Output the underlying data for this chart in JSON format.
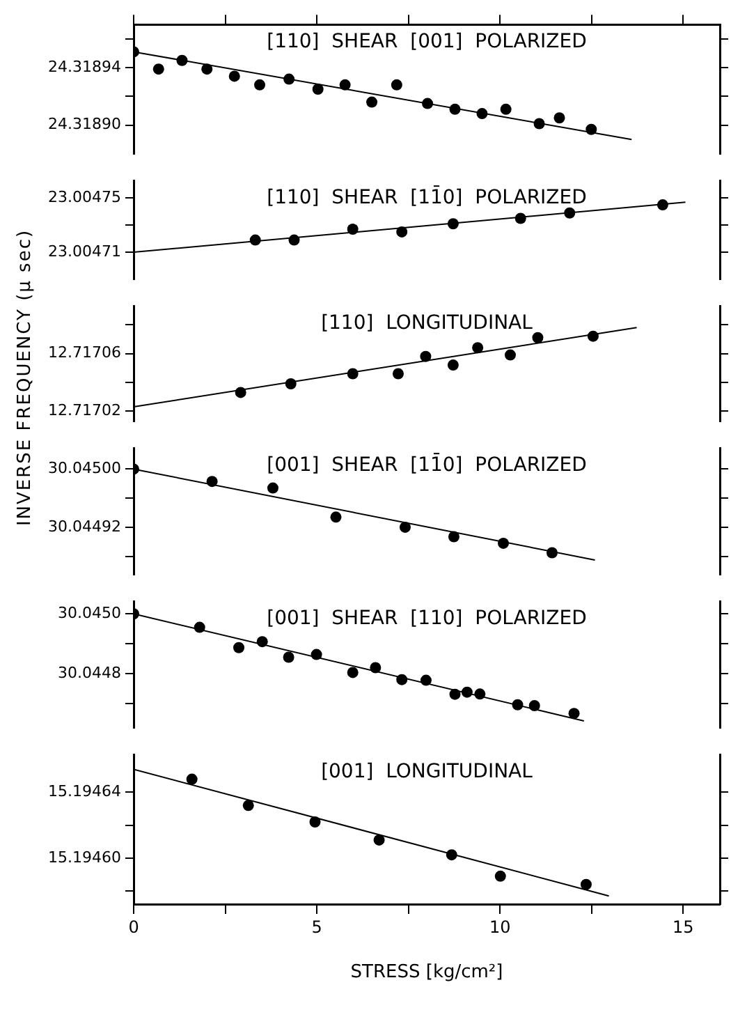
{
  "chart_data": [
    {
      "type": "scatter",
      "title": "[110]  SHEAR  [001]  POLARIZED",
      "xlim": [
        0,
        16
      ],
      "xticks": [
        0,
        {
          "value": 2.5,
          "label": null
        },
        5,
        {
          "value": 7.5,
          "label": null
        },
        10,
        {
          "value": 12.5,
          "label": null
        },
        15
      ],
      "ylim": [
        24.31888,
        24.31897
      ],
      "yticks": [
        {
          "value": 24.31896,
          "label": null
        },
        24.31894,
        {
          "value": 24.31892,
          "label": null
        },
        {
          "value": 24.3189,
          "label": "24.31890"
        }
      ],
      "tick_labels": "y",
      "grid": false,
      "legend": false,
      "series": [
        {
          "type": "scatter",
          "marker": "circle",
          "color": "#000000",
          "x": [
            0,
            0.68,
            1.32,
            2.0,
            2.75,
            3.44,
            4.24,
            5.03,
            5.77,
            6.5,
            7.18,
            8.02,
            8.77,
            9.51,
            10.16,
            11.07,
            11.62,
            12.49
          ],
          "values": [
            24.318951,
            24.318939,
            24.318945,
            24.318939,
            24.318934,
            24.318928,
            24.318932,
            24.318925,
            24.318928,
            24.318916,
            24.318928,
            24.318915,
            24.318911,
            24.318908,
            24.318911,
            24.318901,
            24.318905,
            24.318897
          ]
        },
        {
          "type": "line",
          "marker": "none",
          "color": "#000000",
          "x": [
            0,
            13.59
          ],
          "values": [
            24.318951,
            24.31889
          ]
        }
      ]
    },
    {
      "type": "scatter",
      "title": "[110]  SHEAR  [11̄0]  POLARIZED",
      "xlim": [
        0,
        16
      ],
      "ylim": [
        23.00469,
        23.004763
      ],
      "yticks": [
        {
          "value": 23.00475,
          "label": "23.00475"
        },
        {
          "value": 23.00473,
          "label": null
        },
        {
          "value": 23.00471,
          "label": "23.00471"
        }
      ],
      "tick_labels": "y",
      "grid": false,
      "legend": false,
      "series": [
        {
          "type": "scatter",
          "marker": "circle",
          "color": "#000000",
          "x": [
            3.32,
            4.38,
            5.98,
            7.32,
            8.72,
            10.56,
            11.9,
            14.44
          ],
          "values": [
            23.004719,
            23.004719,
            23.004727,
            23.004725,
            23.004731,
            23.004735,
            23.004739,
            23.004745
          ]
        },
        {
          "type": "line",
          "marker": "none",
          "color": "#000000",
          "x": [
            0,
            15.06
          ],
          "values": [
            23.00471,
            23.004747
          ]
        }
      ]
    },
    {
      "type": "scatter",
      "title": "[110]  LONGITUDINAL",
      "ylabel": "INVERSE FREQUENCY (μ sec)",
      "xlim": [
        0,
        16
      ],
      "ylim": [
        12.717013,
        12.717093
      ],
      "yticks": [
        {
          "value": 12.71708,
          "label": null
        },
        {
          "value": 12.71706,
          "label": "12.71706"
        },
        {
          "value": 12.71704,
          "label": null
        },
        {
          "value": 12.71702,
          "label": "12.71702"
        }
      ],
      "tick_labels": "y",
      "grid": false,
      "legend": false,
      "series": [
        {
          "type": "scatter",
          "marker": "circle",
          "color": "#000000",
          "x": [
            2.92,
            4.29,
            5.98,
            7.22,
            7.97,
            8.72,
            9.39,
            10.28,
            11.03,
            12.54
          ],
          "values": [
            12.717033,
            12.717039,
            12.717046,
            12.717046,
            12.717058,
            12.717052,
            12.717064,
            12.717059,
            12.717071,
            12.717072
          ]
        },
        {
          "type": "line",
          "marker": "none",
          "color": "#000000",
          "x": [
            0,
            13.73
          ],
          "values": [
            12.717023,
            12.717078
          ]
        }
      ]
    },
    {
      "type": "scatter",
      "title": "[001]  SHEAR  [11̄0]  POLARIZED",
      "xlim": [
        0,
        16
      ],
      "ylim": [
        30.044855,
        30.045029
      ],
      "yticks": [
        {
          "value": 30.045,
          "label": "30.04500"
        },
        {
          "value": 30.04496,
          "label": null
        },
        {
          "value": 30.04492,
          "label": "30.04492"
        },
        {
          "value": 30.04488,
          "label": null
        }
      ],
      "tick_labels": "y",
      "grid": false,
      "legend": false,
      "series": [
        {
          "type": "scatter",
          "marker": "circle",
          "color": "#000000",
          "x": [
            0,
            2.14,
            3.8,
            5.52,
            7.41,
            8.74,
            10.09,
            11.42
          ],
          "values": [
            30.045,
            30.044983,
            30.044974,
            30.044934,
            30.04492,
            30.044907,
            30.044898,
            30.044885
          ]
        },
        {
          "type": "line",
          "marker": "none",
          "color": "#000000",
          "x": [
            0,
            12.59
          ],
          "values": [
            30.045,
            30.044875
          ]
        }
      ]
    },
    {
      "type": "scatter",
      "title": "[001]  SHEAR  [110]  POLARIZED",
      "xlim": [
        0,
        16
      ],
      "ylim": [
        30.044619,
        30.045042
      ],
      "yticks": [
        {
          "value": 30.045,
          "label": "30.0450"
        },
        {
          "value": 30.0449,
          "label": null
        },
        30.0448,
        {
          "value": 30.0447,
          "label": null
        }
      ],
      "tick_labels": "y",
      "grid": false,
      "legend": false,
      "series": [
        {
          "type": "scatter",
          "marker": "circle",
          "color": "#000000",
          "x": [
            0,
            1.8,
            2.87,
            3.51,
            4.23,
            4.99,
            5.98,
            6.6,
            7.32,
            7.98,
            8.77,
            9.1,
            9.45,
            10.48,
            10.94,
            12.02
          ],
          "values": [
            30.045,
            30.044955,
            30.044887,
            30.044907,
            30.044855,
            30.044864,
            30.044804,
            30.04482,
            30.04478,
            30.044778,
            30.044731,
            30.044738,
            30.044732,
            30.044696,
            30.044693,
            30.044667
          ]
        },
        {
          "type": "line",
          "marker": "none",
          "color": "#000000",
          "x": [
            0,
            12.29
          ],
          "values": [
            30.045,
            30.044642
          ]
        }
      ]
    },
    {
      "type": "scatter",
      "title": "[001]  LONGITUDINAL",
      "xlabel": "STRESS [kg/cm²]",
      "xlim": [
        0,
        16
      ],
      "xticks": [
        0,
        {
          "value": 2.5,
          "label": null
        },
        5,
        {
          "value": 7.5,
          "label": null
        },
        10,
        {
          "value": 12.5,
          "label": null
        },
        15
      ],
      "ylim": [
        15.194572,
        15.194663
      ],
      "yticks": [
        {
          "value": 15.19464,
          "label": "15.19464"
        },
        {
          "value": 15.19462,
          "label": null
        },
        {
          "value": 15.1946,
          "label": "15.19460"
        },
        {
          "value": 15.19458,
          "label": null
        }
      ],
      "grid": false,
      "legend": false,
      "series": [
        {
          "type": "scatter",
          "marker": "circle",
          "color": "#000000",
          "x": [
            1.59,
            3.13,
            4.95,
            6.7,
            8.68,
            10.01,
            12.35
          ],
          "values": [
            15.194648,
            15.194632,
            15.194622,
            15.194611,
            15.194602,
            15.194589,
            15.194584
          ]
        },
        {
          "type": "line",
          "marker": "none",
          "color": "#000000",
          "x": [
            0,
            12.97
          ],
          "values": [
            15.194654,
            15.194577
          ]
        }
      ]
    }
  ]
}
